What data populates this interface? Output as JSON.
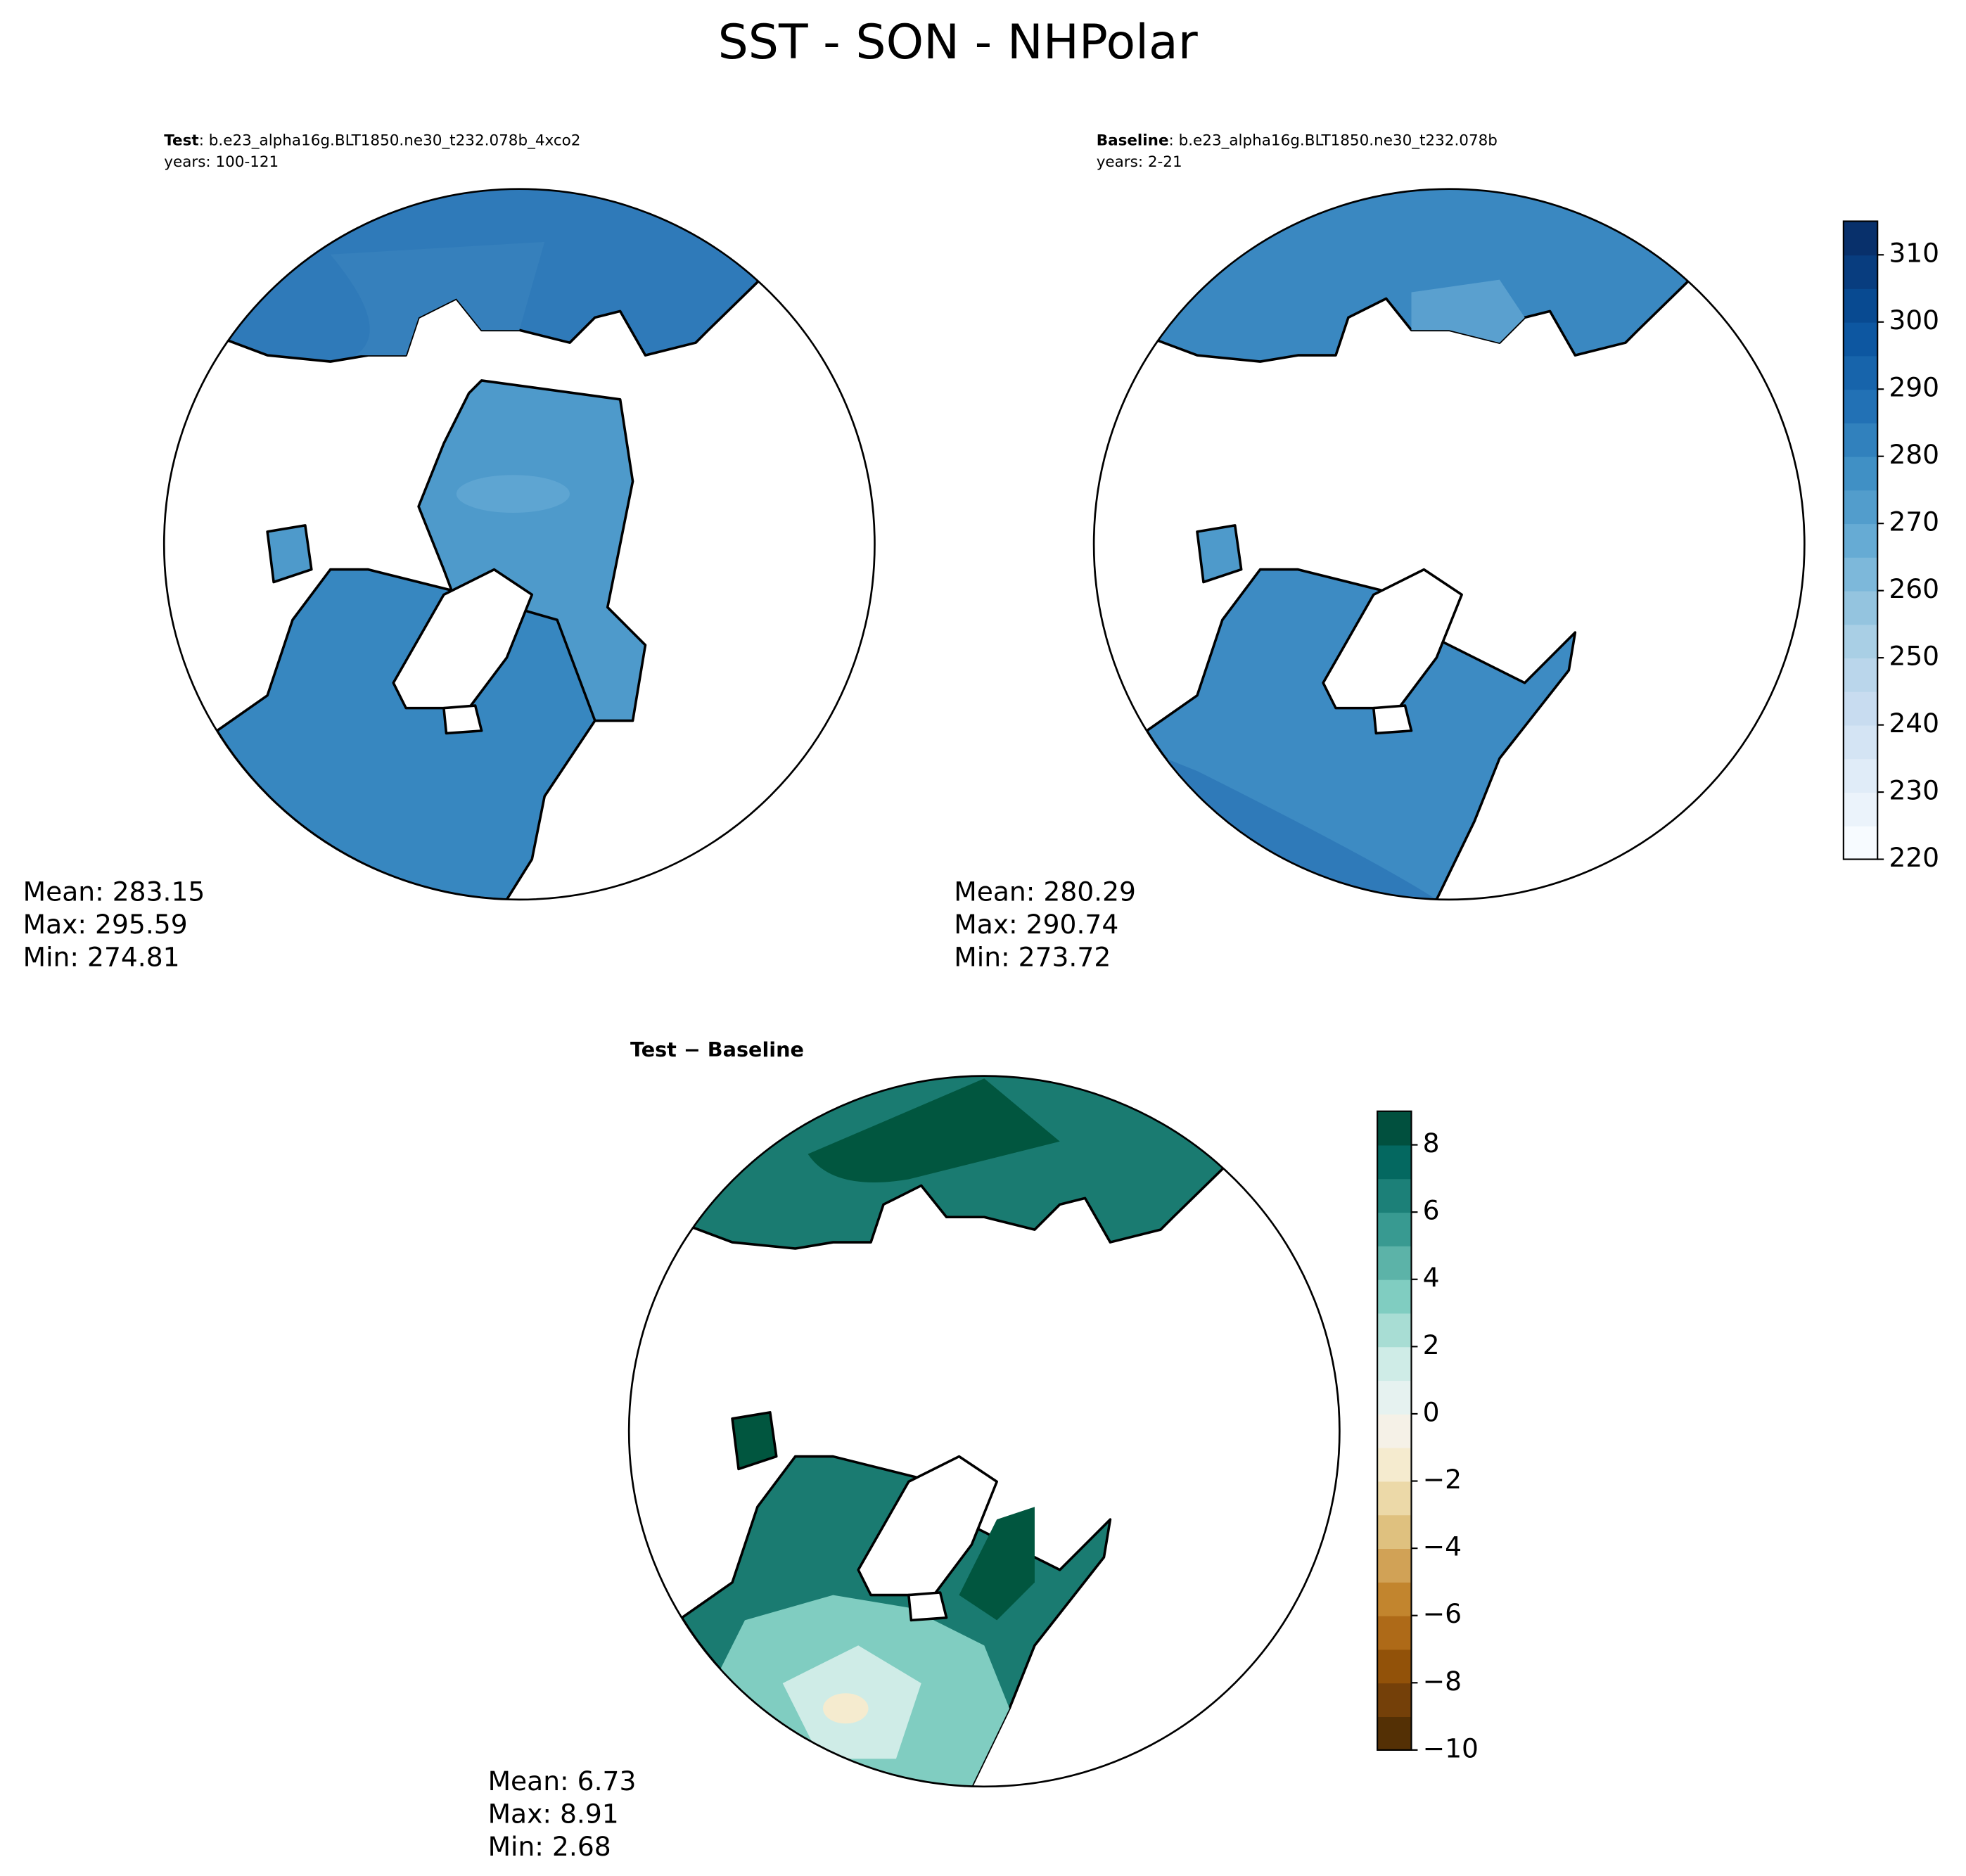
{
  "title": "SST - SON - NHPolar",
  "panels": [
    {
      "label": "Test",
      "text": ": b.e23_alpha16g.BLT1850.ne30_t232.078b_4xco2",
      "years": "years: 100-121",
      "stats": [
        "Mean: 283.15",
        "Max: 295.59",
        "Min: 274.81"
      ]
    },
    {
      "label": "Baseline",
      "text": ": b.e23_alpha16g.BLT1850.ne30_t232.078b",
      "years": "years: 2-21",
      "stats": [
        "Mean: 280.29",
        "Max: 290.74",
        "Min: 273.72"
      ]
    },
    {
      "label": "Test − Baseline",
      "stats": [
        "Mean:  6.73",
        "Max:  8.91",
        "Min:  2.68"
      ]
    }
  ],
  "colorbars": [
    {
      "lim": [
        220,
        315
      ],
      "ticks": [
        220,
        230,
        240,
        250,
        260,
        270,
        280,
        290,
        300,
        310
      ],
      "colors": [
        "#f7fbff",
        "#ebf3fb",
        "#e0ecf8",
        "#d4e4f4",
        "#c8dcf0",
        "#bad6eb",
        "#a9cfe5",
        "#94c4df",
        "#7db8da",
        "#66abd4",
        "#529dcc",
        "#4090c5",
        "#3181bd",
        "#2271b5",
        "#1764ab",
        "#0d57a1",
        "#084a91",
        "#083d7f",
        "#08306b"
      ]
    },
    {
      "lim": [
        -10,
        9
      ],
      "ticks": [
        {
          "value": -10,
          "label": "−10"
        },
        {
          "value": -8,
          "label": "−8"
        },
        {
          "value": -6,
          "label": "−6"
        },
        {
          "value": -4,
          "label": "−4"
        },
        {
          "value": -2,
          "label": "−2"
        },
        0,
        2,
        4,
        6,
        8
      ],
      "colors": [
        "#543005",
        "#744009",
        "#925209",
        "#ae6a18",
        "#c2852e",
        "#d1a256",
        "#dfc17f",
        "#ecd9a8",
        "#f5ebcf",
        "#f5f1e7",
        "#e6f2f0",
        "#cfece7",
        "#a8ddd4",
        "#80cdc1",
        "#5cb3a8",
        "#389a91",
        "#1c8078",
        "#046860",
        "#01503e"
      ]
    }
  ]
}
